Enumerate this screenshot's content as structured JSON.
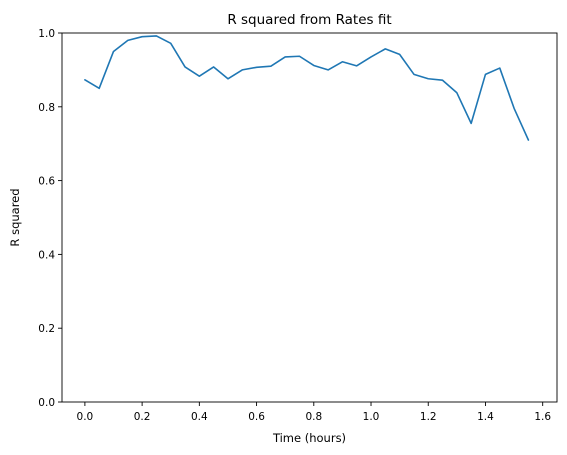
{
  "chart_data": {
    "type": "line",
    "title": "R squared from Rates fit",
    "xlabel": "Time (hours)",
    "ylabel": "R squared",
    "xlim": [
      -0.08,
      1.65
    ],
    "ylim": [
      0.0,
      1.0
    ],
    "xticks": [
      "0.0",
      "0.2",
      "0.4",
      "0.6",
      "0.8",
      "1.0",
      "1.2",
      "1.4",
      "1.6"
    ],
    "xtick_values": [
      0.0,
      0.2,
      0.4,
      0.6,
      0.8,
      1.0,
      1.2,
      1.4,
      1.6
    ],
    "yticks": [
      "0.0",
      "0.2",
      "0.4",
      "0.6",
      "0.8",
      "1.0"
    ],
    "ytick_values": [
      0.0,
      0.2,
      0.4,
      0.6,
      0.8,
      1.0
    ],
    "grid": false,
    "colors": {
      "line": "#1f77b4",
      "axes": "#000000",
      "background": "#ffffff"
    },
    "series": [
      {
        "x": [
          0.0,
          0.05,
          0.1,
          0.15,
          0.2,
          0.25,
          0.3,
          0.35,
          0.4,
          0.45,
          0.5,
          0.55,
          0.6,
          0.65,
          0.7,
          0.75,
          0.8,
          0.85,
          0.9,
          0.95,
          1.0,
          1.05,
          1.1,
          1.15,
          1.2,
          1.25,
          1.3,
          1.35,
          1.4,
          1.45,
          1.5,
          1.55
        ],
        "y": [
          0.873,
          0.85,
          0.95,
          0.98,
          0.99,
          0.992,
          0.972,
          0.908,
          0.883,
          0.908,
          0.876,
          0.9,
          0.907,
          0.91,
          0.935,
          0.937,
          0.912,
          0.9,
          0.922,
          0.911,
          0.935,
          0.957,
          0.942,
          0.888,
          0.876,
          0.872,
          0.838,
          0.755,
          0.888,
          0.905,
          0.796,
          0.71
        ]
      }
    ]
  }
}
